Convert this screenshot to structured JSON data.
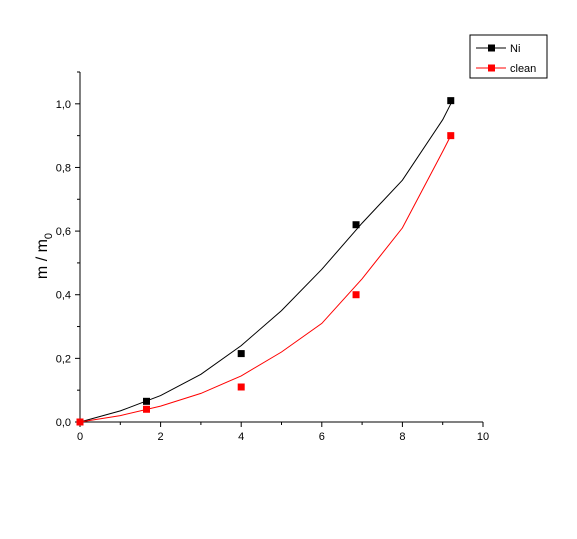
{
  "chart_data": {
    "type": "scatter",
    "title": "",
    "xlabel": "",
    "ylabel": {
      "main": "m / m",
      "subscript": "0"
    },
    "xlim": [
      0,
      10
    ],
    "ylim": [
      0,
      1.1
    ],
    "x_ticks": [
      0,
      2,
      4,
      6,
      8,
      10
    ],
    "x_tick_labels": [
      "0",
      "2",
      "4",
      "6",
      "8",
      "10"
    ],
    "y_ticks": [
      0,
      0.2,
      0.4,
      0.6,
      0.8,
      1.0
    ],
    "y_tick_labels": [
      "0,0",
      "0,2",
      "0,4",
      "0,6",
      "0,8",
      "1,0"
    ],
    "grid": false,
    "legend_position": "top-right",
    "series": [
      {
        "name": "Ni",
        "color": "#000000",
        "marker": "square",
        "x": [
          0,
          1.65,
          4.0,
          6.85,
          9.2
        ],
        "y": [
          0.0,
          0.065,
          0.215,
          0.62,
          1.01
        ],
        "fit": {
          "x": [
            0,
            1,
            2,
            3,
            4,
            5,
            6,
            7,
            8,
            9,
            9.2
          ],
          "y": [
            0.0,
            0.035,
            0.083,
            0.15,
            0.24,
            0.35,
            0.48,
            0.625,
            0.76,
            0.95,
            1.0
          ]
        }
      },
      {
        "name": "clean",
        "color": "#ff0000",
        "marker": "square",
        "x": [
          0,
          1.65,
          4.0,
          6.85,
          9.2
        ],
        "y": [
          0.0,
          0.04,
          0.11,
          0.4,
          0.9
        ],
        "fit": {
          "x": [
            0,
            1,
            2,
            3,
            4,
            5,
            6,
            7,
            8,
            9,
            9.2
          ],
          "y": [
            0.0,
            0.02,
            0.05,
            0.09,
            0.145,
            0.22,
            0.31,
            0.45,
            0.61,
            0.85,
            0.9
          ]
        }
      }
    ]
  }
}
